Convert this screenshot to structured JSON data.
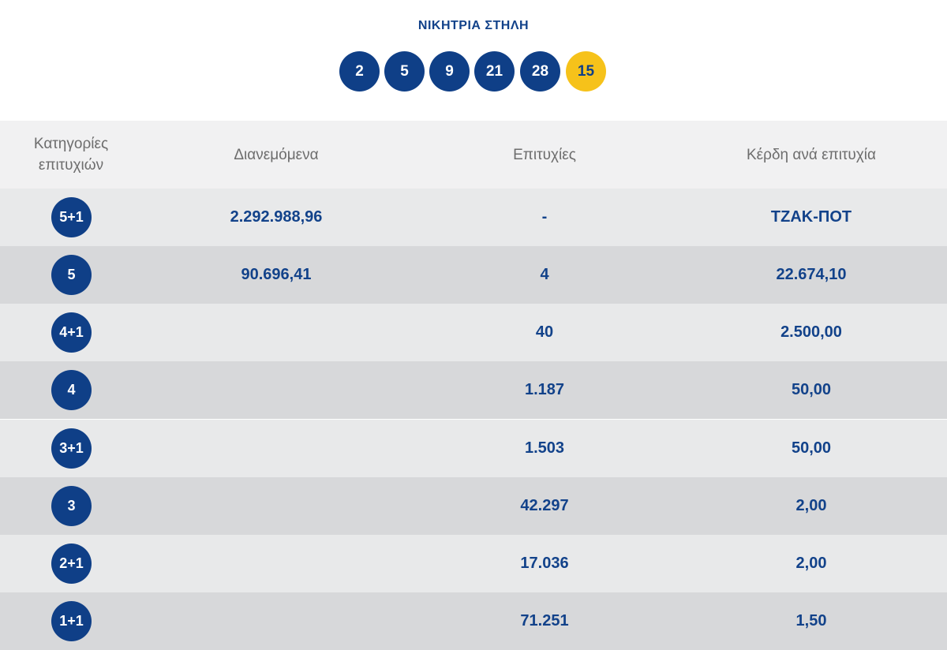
{
  "header": {
    "title": "ΝΙΚΗΤΡΙΑ ΣΤΗΛΗ",
    "numbers": [
      "2",
      "5",
      "9",
      "21",
      "28"
    ],
    "joker": "15",
    "joker_color": "#f6c21a",
    "ball_color": "#0f3f87"
  },
  "table": {
    "headers": {
      "category_line1": "Κατηγορίες",
      "category_line2": "επιτυχιών",
      "distributed": "Διανεμόμενα",
      "winners": "Επιτυχίες",
      "prize": "Κέρδη ανά επιτυχία"
    },
    "rows": [
      {
        "category": "5+1",
        "distributed": "2.292.988,96",
        "winners": "-",
        "prize": "ΤΖΑΚ-ΠΟΤ"
      },
      {
        "category": "5",
        "distributed": "90.696,41",
        "winners": "4",
        "prize": "22.674,10"
      },
      {
        "category": "4+1",
        "distributed": "",
        "winners": "40",
        "prize": "2.500,00"
      },
      {
        "category": "4",
        "distributed": "",
        "winners": "1.187",
        "prize": "50,00"
      },
      {
        "category": "3+1",
        "distributed": "",
        "winners": "1.503",
        "prize": "50,00"
      },
      {
        "category": "3",
        "distributed": "",
        "winners": "42.297",
        "prize": "2,00"
      },
      {
        "category": "2+1",
        "distributed": "",
        "winners": "17.036",
        "prize": "2,00"
      },
      {
        "category": "1+1",
        "distributed": "",
        "winners": "71.251",
        "prize": "1,50"
      }
    ]
  }
}
